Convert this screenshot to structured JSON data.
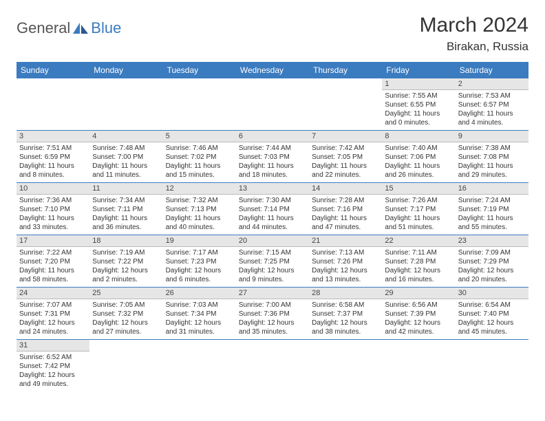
{
  "logo": {
    "part1": "General",
    "part2": "Blue"
  },
  "title": "March 2024",
  "location": "Birakan, Russia",
  "colors": {
    "header_bg": "#3b7bbf",
    "header_text": "#ffffff",
    "daynum_bg": "#e6e6e6",
    "week_border": "#3b7bbf",
    "text": "#333333"
  },
  "day_headers": [
    "Sunday",
    "Monday",
    "Tuesday",
    "Wednesday",
    "Thursday",
    "Friday",
    "Saturday"
  ],
  "weeks": [
    [
      null,
      null,
      null,
      null,
      null,
      {
        "n": "1",
        "sr": "Sunrise: 7:55 AM",
        "ss": "Sunset: 6:55 PM",
        "d1": "Daylight: 11 hours",
        "d2": "and 0 minutes."
      },
      {
        "n": "2",
        "sr": "Sunrise: 7:53 AM",
        "ss": "Sunset: 6:57 PM",
        "d1": "Daylight: 11 hours",
        "d2": "and 4 minutes."
      }
    ],
    [
      {
        "n": "3",
        "sr": "Sunrise: 7:51 AM",
        "ss": "Sunset: 6:59 PM",
        "d1": "Daylight: 11 hours",
        "d2": "and 8 minutes."
      },
      {
        "n": "4",
        "sr": "Sunrise: 7:48 AM",
        "ss": "Sunset: 7:00 PM",
        "d1": "Daylight: 11 hours",
        "d2": "and 11 minutes."
      },
      {
        "n": "5",
        "sr": "Sunrise: 7:46 AM",
        "ss": "Sunset: 7:02 PM",
        "d1": "Daylight: 11 hours",
        "d2": "and 15 minutes."
      },
      {
        "n": "6",
        "sr": "Sunrise: 7:44 AM",
        "ss": "Sunset: 7:03 PM",
        "d1": "Daylight: 11 hours",
        "d2": "and 18 minutes."
      },
      {
        "n": "7",
        "sr": "Sunrise: 7:42 AM",
        "ss": "Sunset: 7:05 PM",
        "d1": "Daylight: 11 hours",
        "d2": "and 22 minutes."
      },
      {
        "n": "8",
        "sr": "Sunrise: 7:40 AM",
        "ss": "Sunset: 7:06 PM",
        "d1": "Daylight: 11 hours",
        "d2": "and 26 minutes."
      },
      {
        "n": "9",
        "sr": "Sunrise: 7:38 AM",
        "ss": "Sunset: 7:08 PM",
        "d1": "Daylight: 11 hours",
        "d2": "and 29 minutes."
      }
    ],
    [
      {
        "n": "10",
        "sr": "Sunrise: 7:36 AM",
        "ss": "Sunset: 7:10 PM",
        "d1": "Daylight: 11 hours",
        "d2": "and 33 minutes."
      },
      {
        "n": "11",
        "sr": "Sunrise: 7:34 AM",
        "ss": "Sunset: 7:11 PM",
        "d1": "Daylight: 11 hours",
        "d2": "and 36 minutes."
      },
      {
        "n": "12",
        "sr": "Sunrise: 7:32 AM",
        "ss": "Sunset: 7:13 PM",
        "d1": "Daylight: 11 hours",
        "d2": "and 40 minutes."
      },
      {
        "n": "13",
        "sr": "Sunrise: 7:30 AM",
        "ss": "Sunset: 7:14 PM",
        "d1": "Daylight: 11 hours",
        "d2": "and 44 minutes."
      },
      {
        "n": "14",
        "sr": "Sunrise: 7:28 AM",
        "ss": "Sunset: 7:16 PM",
        "d1": "Daylight: 11 hours",
        "d2": "and 47 minutes."
      },
      {
        "n": "15",
        "sr": "Sunrise: 7:26 AM",
        "ss": "Sunset: 7:17 PM",
        "d1": "Daylight: 11 hours",
        "d2": "and 51 minutes."
      },
      {
        "n": "16",
        "sr": "Sunrise: 7:24 AM",
        "ss": "Sunset: 7:19 PM",
        "d1": "Daylight: 11 hours",
        "d2": "and 55 minutes."
      }
    ],
    [
      {
        "n": "17",
        "sr": "Sunrise: 7:22 AM",
        "ss": "Sunset: 7:20 PM",
        "d1": "Daylight: 11 hours",
        "d2": "and 58 minutes."
      },
      {
        "n": "18",
        "sr": "Sunrise: 7:19 AM",
        "ss": "Sunset: 7:22 PM",
        "d1": "Daylight: 12 hours",
        "d2": "and 2 minutes."
      },
      {
        "n": "19",
        "sr": "Sunrise: 7:17 AM",
        "ss": "Sunset: 7:23 PM",
        "d1": "Daylight: 12 hours",
        "d2": "and 6 minutes."
      },
      {
        "n": "20",
        "sr": "Sunrise: 7:15 AM",
        "ss": "Sunset: 7:25 PM",
        "d1": "Daylight: 12 hours",
        "d2": "and 9 minutes."
      },
      {
        "n": "21",
        "sr": "Sunrise: 7:13 AM",
        "ss": "Sunset: 7:26 PM",
        "d1": "Daylight: 12 hours",
        "d2": "and 13 minutes."
      },
      {
        "n": "22",
        "sr": "Sunrise: 7:11 AM",
        "ss": "Sunset: 7:28 PM",
        "d1": "Daylight: 12 hours",
        "d2": "and 16 minutes."
      },
      {
        "n": "23",
        "sr": "Sunrise: 7:09 AM",
        "ss": "Sunset: 7:29 PM",
        "d1": "Daylight: 12 hours",
        "d2": "and 20 minutes."
      }
    ],
    [
      {
        "n": "24",
        "sr": "Sunrise: 7:07 AM",
        "ss": "Sunset: 7:31 PM",
        "d1": "Daylight: 12 hours",
        "d2": "and 24 minutes."
      },
      {
        "n": "25",
        "sr": "Sunrise: 7:05 AM",
        "ss": "Sunset: 7:32 PM",
        "d1": "Daylight: 12 hours",
        "d2": "and 27 minutes."
      },
      {
        "n": "26",
        "sr": "Sunrise: 7:03 AM",
        "ss": "Sunset: 7:34 PM",
        "d1": "Daylight: 12 hours",
        "d2": "and 31 minutes."
      },
      {
        "n": "27",
        "sr": "Sunrise: 7:00 AM",
        "ss": "Sunset: 7:36 PM",
        "d1": "Daylight: 12 hours",
        "d2": "and 35 minutes."
      },
      {
        "n": "28",
        "sr": "Sunrise: 6:58 AM",
        "ss": "Sunset: 7:37 PM",
        "d1": "Daylight: 12 hours",
        "d2": "and 38 minutes."
      },
      {
        "n": "29",
        "sr": "Sunrise: 6:56 AM",
        "ss": "Sunset: 7:39 PM",
        "d1": "Daylight: 12 hours",
        "d2": "and 42 minutes."
      },
      {
        "n": "30",
        "sr": "Sunrise: 6:54 AM",
        "ss": "Sunset: 7:40 PM",
        "d1": "Daylight: 12 hours",
        "d2": "and 45 minutes."
      }
    ],
    [
      {
        "n": "31",
        "sr": "Sunrise: 6:52 AM",
        "ss": "Sunset: 7:42 PM",
        "d1": "Daylight: 12 hours",
        "d2": "and 49 minutes."
      },
      null,
      null,
      null,
      null,
      null,
      null
    ]
  ]
}
